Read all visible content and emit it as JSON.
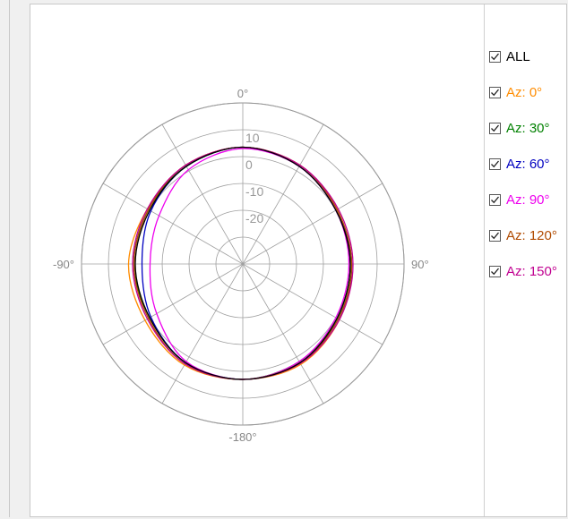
{
  "chart_data": {
    "type": "polar-line",
    "angle_labels": [
      {
        "angle": 0,
        "text": "0°"
      },
      {
        "angle": 90,
        "text": "90°"
      },
      {
        "angle": 180,
        "text": "-180°"
      },
      {
        "angle": 270,
        "text": "-90°"
      }
    ],
    "radial_axis": {
      "min": -40,
      "max": 20,
      "ticks": [
        -30,
        -20,
        -10,
        0,
        10,
        20
      ],
      "tick_labels": [
        "-20",
        "-10",
        "0",
        "10"
      ]
    },
    "spoke_step_deg": 30,
    "grid": true,
    "legend": "right",
    "all_label": "ALL",
    "series": [
      {
        "name": "Az: 0°",
        "color": "#ff8c00",
        "angles": [
          0,
          30,
          60,
          90,
          120,
          150,
          180,
          210,
          240,
          270,
          300,
          330
        ],
        "values": [
          3.5,
          2.5,
          0.5,
          0.5,
          1.5,
          3.2,
          3.0,
          3.5,
          2.0,
          2.5,
          1.0,
          2.5
        ]
      },
      {
        "name": "Az: 30°",
        "color": "#008000",
        "angles": [
          0,
          30,
          60,
          90,
          120,
          150,
          180,
          210,
          240,
          270,
          300,
          330
        ],
        "values": [
          3.5,
          2.0,
          0.0,
          0.0,
          0.5,
          2.0,
          3.0,
          2.5,
          0.0,
          0.5,
          0.5,
          2.0
        ]
      },
      {
        "name": "Az: 60°",
        "color": "#0000c0",
        "angles": [
          0,
          30,
          60,
          90,
          120,
          150,
          180,
          210,
          240,
          270,
          300,
          330
        ],
        "values": [
          3.5,
          2.0,
          0.0,
          0.5,
          1.0,
          2.5,
          3.0,
          2.5,
          -0.5,
          -2.5,
          -0.5,
          2.0
        ]
      },
      {
        "name": "Az: 90°",
        "color": "#ee00ee",
        "angles": [
          0,
          30,
          60,
          90,
          120,
          150,
          180,
          210,
          240,
          270,
          300,
          330
        ],
        "values": [
          3.0,
          2.0,
          0.0,
          -0.5,
          0.0,
          2.0,
          3.0,
          2.0,
          -3.0,
          -5.5,
          -4.0,
          0.5
        ]
      },
      {
        "name": "Az: 120°",
        "color": "#b04a00",
        "angles": [
          0,
          30,
          60,
          90,
          120,
          150,
          180,
          210,
          240,
          270,
          300,
          330
        ],
        "values": [
          3.5,
          2.5,
          0.5,
          0.5,
          1.0,
          2.5,
          3.0,
          3.0,
          0.5,
          0.5,
          0.5,
          2.5
        ]
      },
      {
        "name": "Az: 150°",
        "color": "#c00090",
        "angles": [
          0,
          30,
          60,
          90,
          120,
          150,
          180,
          210,
          240,
          270,
          300,
          330
        ],
        "values": [
          3.5,
          2.5,
          1.0,
          1.0,
          1.5,
          2.8,
          3.0,
          3.0,
          1.0,
          1.0,
          1.0,
          2.5
        ]
      },
      {
        "name": "",
        "color": "#000000",
        "angles": [
          0,
          30,
          60,
          90,
          120,
          150,
          180,
          210,
          240,
          270,
          300,
          330
        ],
        "values": [
          3.5,
          2.0,
          0.0,
          0.0,
          0.5,
          2.5,
          3.0,
          2.5,
          0.0,
          0.0,
          0.0,
          2.0
        ]
      }
    ]
  },
  "legend": {
    "items": [
      {
        "label": "ALL",
        "color": "#000000",
        "checked": true
      },
      {
        "label": "Az: 0°",
        "color": "#ff8c00",
        "checked": true
      },
      {
        "label": "Az: 30°",
        "color": "#008000",
        "checked": true
      },
      {
        "label": "Az: 60°",
        "color": "#0000c0",
        "checked": true
      },
      {
        "label": "Az: 90°",
        "color": "#ee00ee",
        "checked": true
      },
      {
        "label": "Az: 120°",
        "color": "#b04a00",
        "checked": true
      },
      {
        "label": "Az: 150°",
        "color": "#c00090",
        "checked": true
      }
    ]
  }
}
